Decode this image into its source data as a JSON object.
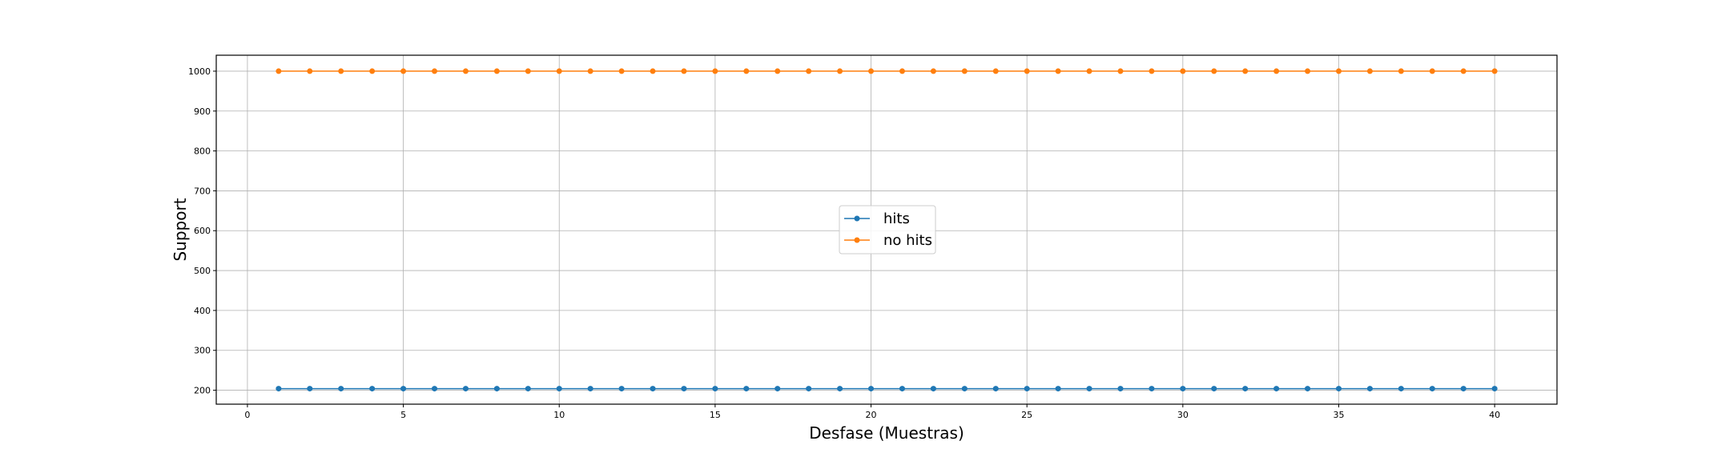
{
  "chart_data": {
    "type": "line",
    "xlabel": "Desfase (Muestras)",
    "ylabel": "Support",
    "xlim": [
      -1,
      42
    ],
    "ylim": [
      165,
      1040
    ],
    "x_ticks": [
      0,
      5,
      10,
      15,
      20,
      25,
      30,
      35,
      40
    ],
    "y_ticks": [
      200,
      300,
      400,
      500,
      600,
      700,
      800,
      900,
      1000
    ],
    "grid": true,
    "legend_position": "center",
    "x": [
      1,
      2,
      3,
      4,
      5,
      6,
      7,
      8,
      9,
      10,
      11,
      12,
      13,
      14,
      15,
      16,
      17,
      18,
      19,
      20,
      21,
      22,
      23,
      24,
      25,
      26,
      27,
      28,
      29,
      30,
      31,
      32,
      33,
      34,
      35,
      36,
      37,
      38,
      39,
      40
    ],
    "series": [
      {
        "name": "hits",
        "color": "#1f77b4",
        "marker": "circle",
        "values": [
          204,
          204,
          204,
          204,
          204,
          204,
          204,
          204,
          204,
          204,
          204,
          204,
          204,
          204,
          204,
          204,
          204,
          204,
          204,
          204,
          204,
          204,
          204,
          204,
          204,
          204,
          204,
          204,
          204,
          204,
          204,
          204,
          204,
          204,
          204,
          204,
          204,
          204,
          204,
          204
        ]
      },
      {
        "name": "no hits",
        "color": "#ff7f0e",
        "marker": "circle",
        "values": [
          1000,
          1000,
          1000,
          1000,
          1000,
          1000,
          1000,
          1000,
          1000,
          1000,
          1000,
          1000,
          1000,
          1000,
          1000,
          1000,
          1000,
          1000,
          1000,
          1000,
          1000,
          1000,
          1000,
          1000,
          1000,
          1000,
          1000,
          1000,
          1000,
          1000,
          1000,
          1000,
          1000,
          1000,
          1000,
          1000,
          1000,
          1000,
          1000,
          1000
        ]
      }
    ]
  }
}
